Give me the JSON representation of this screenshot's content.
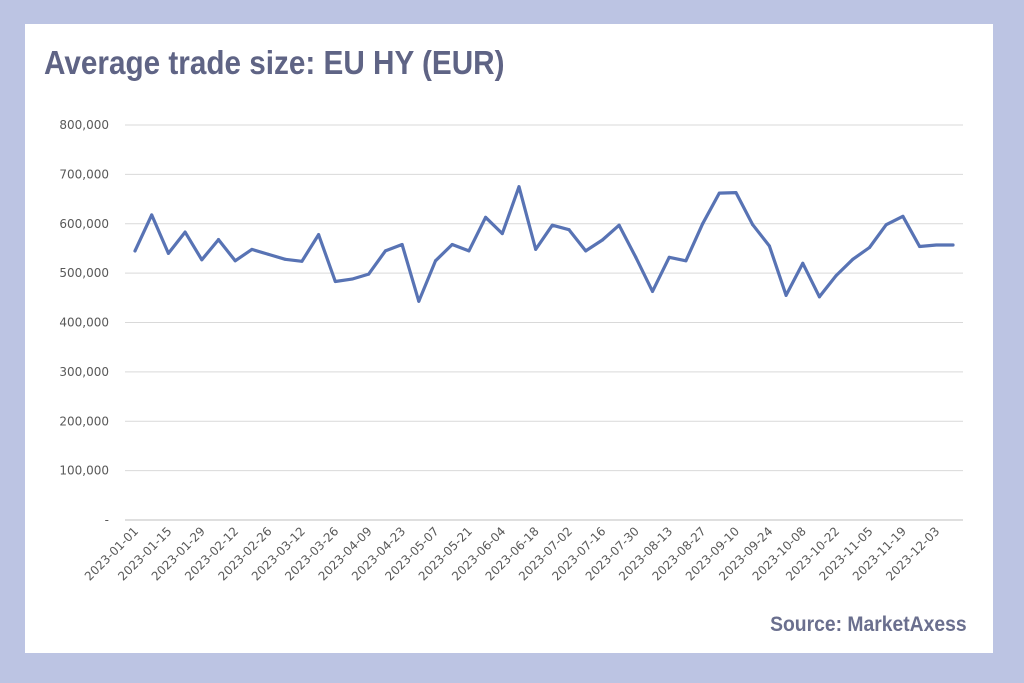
{
  "title": "Average trade size: EU HY (EUR)",
  "source": "Source: MarketAxess",
  "colors": {
    "line": "#5873b4",
    "background": "#bcc4e3",
    "title": "#5f6485",
    "grid": "#d9d9d9"
  },
  "chart_data": {
    "type": "line",
    "title": "Average trade size: EU HY (EUR)",
    "xlabel": "",
    "ylabel": "",
    "ylim": [
      0,
      800000
    ],
    "grid": true,
    "legend": "none",
    "y_ticks": [
      "-",
      "100,000",
      "200,000",
      "300,000",
      "400,000",
      "500,000",
      "600,000",
      "700,000",
      "800,000"
    ],
    "x_tick_labels": [
      "2023-01-01",
      "2023-01-15",
      "2023-01-29",
      "2023-02-12",
      "2023-02-26",
      "2023-03-12",
      "2023-03-26",
      "2023-04-09",
      "2023-04-23",
      "2023-05-07",
      "2023-05-21",
      "2023-06-04",
      "2023-06-18",
      "2023-07-02",
      "2023-07-16",
      "2023-07-30",
      "2023-08-13",
      "2023-08-27",
      "2023-09-10",
      "2023-09-24",
      "2023-10-08",
      "2023-10-22",
      "2023-11-05",
      "2023-11-19",
      "2023-12-03"
    ],
    "x": [
      "2023-01-01",
      "2023-01-08",
      "2023-01-15",
      "2023-01-22",
      "2023-01-29",
      "2023-02-05",
      "2023-02-12",
      "2023-02-19",
      "2023-02-26",
      "2023-03-05",
      "2023-03-12",
      "2023-03-19",
      "2023-03-26",
      "2023-04-02",
      "2023-04-09",
      "2023-04-16",
      "2023-04-23",
      "2023-04-30",
      "2023-05-07",
      "2023-05-14",
      "2023-05-21",
      "2023-05-28",
      "2023-06-04",
      "2023-06-11",
      "2023-06-18",
      "2023-06-25",
      "2023-07-02",
      "2023-07-09",
      "2023-07-16",
      "2023-07-23",
      "2023-07-30",
      "2023-08-06",
      "2023-08-13",
      "2023-08-20",
      "2023-08-27",
      "2023-09-03",
      "2023-09-10",
      "2023-09-17",
      "2023-09-24",
      "2023-10-01",
      "2023-10-08",
      "2023-10-15",
      "2023-10-22",
      "2023-10-29",
      "2023-11-05",
      "2023-11-12",
      "2023-11-19",
      "2023-11-26",
      "2023-12-03",
      "2023-12-10"
    ],
    "series": [
      {
        "values": [
          545000,
          618000,
          540000,
          583000,
          527000,
          568000,
          525000,
          548000,
          538000,
          528000,
          524000,
          578000,
          483000,
          488000,
          498000,
          545000,
          558000,
          443000,
          525000,
          558000,
          545000,
          613000,
          580000,
          675000,
          548000,
          597000,
          588000,
          545000,
          567000,
          597000,
          532000,
          463000,
          532000,
          525000,
          600000,
          662000,
          663000,
          598000,
          555000,
          455000,
          520000,
          452000,
          495000,
          528000,
          552000,
          598000,
          615000,
          554000,
          557000,
          557000
        ]
      }
    ]
  }
}
